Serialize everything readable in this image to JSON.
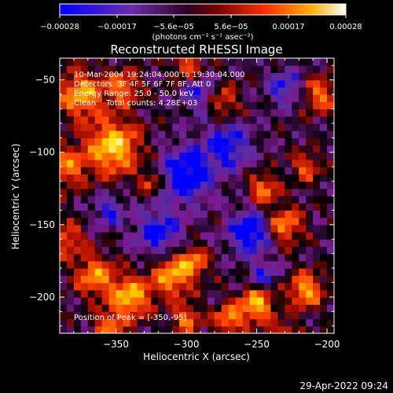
{
  "chart_data": {
    "type": "heatmap",
    "title": "Reconstructed RHESSI Image",
    "xlabel": "Heliocentric X (arcsec)",
    "ylabel": "Heliocentric Y (arcsec)",
    "xlim": [
      -390,
      -195
    ],
    "ylim": [
      -225,
      -35
    ],
    "x_ticks": [
      -350,
      -300,
      -250,
      -200
    ],
    "y_ticks": [
      -50,
      -100,
      -150,
      -200
    ],
    "x_tick_labels": [
      "−350",
      "−300",
      "−250",
      "−200"
    ],
    "y_tick_labels": [
      "−50",
      "−100",
      "−150",
      "−200"
    ],
    "colorbar": {
      "min": -0.00028,
      "max": 0.00028,
      "tick_labels": [
        "−0.00028",
        "−0.00017",
        "−5.6e−05",
        "5.6e−05",
        "0.00017",
        "0.00028"
      ],
      "units_text": "(photons cm⁻² s⁻¹ asec⁻²)"
    },
    "annotations": [
      "10-Mar-2004 19:24:04.000 to 19:30:04.000",
      "Detectors: 3F 4F 5F 6F 7F 8F, Att 0",
      "Energy Range: 25.0 - 50.0 keV",
      "Clean    Total counts: 4.28E+03"
    ],
    "peak_label": "Position of Peak = [-350,-95]",
    "peak": [
      -350,
      -95
    ],
    "grid": false,
    "colormap": [
      "#0000ff",
      "#5a2ca0",
      "#7a1a90",
      "#000000",
      "#b01000",
      "#ff4400",
      "#ff9000",
      "#ffe000",
      "#ffffff"
    ]
  },
  "footer": {
    "timestamp": "29-Apr-2022 09:24"
  }
}
